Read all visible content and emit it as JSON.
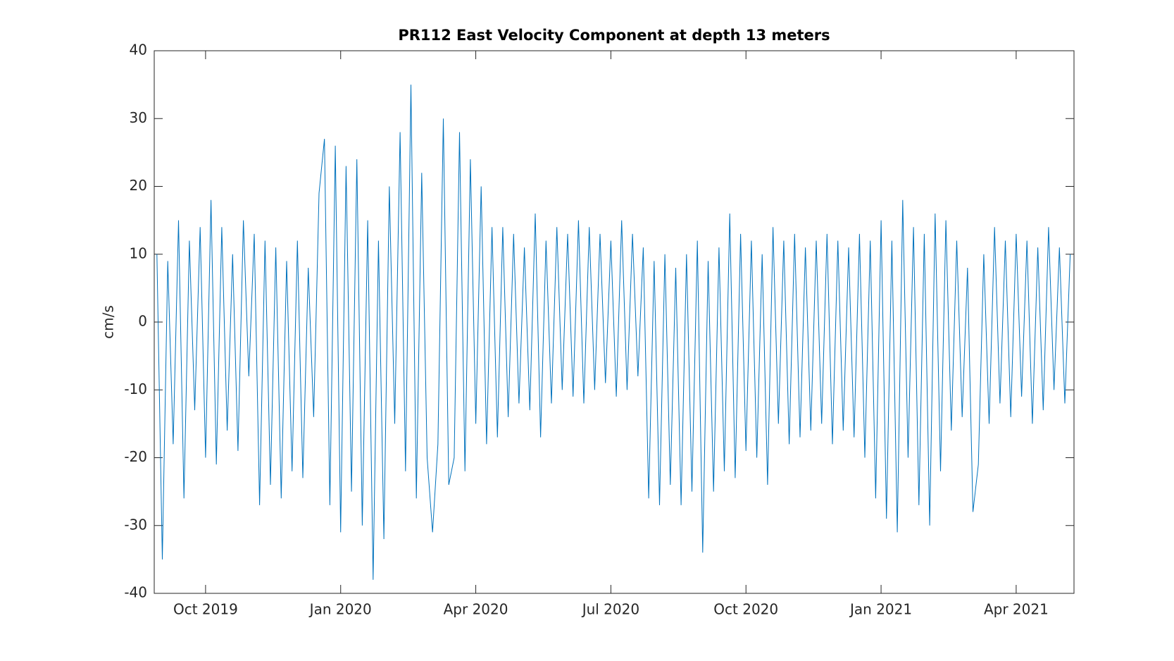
{
  "chart_data": {
    "type": "line",
    "title": "PR112 East Velocity Component at depth 13 meters",
    "ylabel": "cm/s",
    "x": [
      2019.66,
      2019.67,
      2019.68,
      2019.69,
      2019.7,
      2019.71,
      2019.72,
      2019.73,
      2019.74,
      2019.75,
      2019.76,
      2019.77,
      2019.78,
      2019.79,
      2019.8,
      2019.81,
      2019.82,
      2019.83,
      2019.84,
      2019.85,
      2019.86,
      2019.87,
      2019.88,
      2019.89,
      2019.9,
      2019.91,
      2019.92,
      2019.93,
      2019.94,
      2019.95,
      2019.96,
      2019.97,
      2019.98,
      2019.99,
      2020.0,
      2020.01,
      2020.02,
      2020.03,
      2020.04,
      2020.05,
      2020.06,
      2020.07,
      2020.08,
      2020.09,
      2020.1,
      2020.11,
      2020.12,
      2020.13,
      2020.14,
      2020.15,
      2020.16,
      2020.17,
      2020.18,
      2020.19,
      2020.2,
      2020.21,
      2020.22,
      2020.23,
      2020.24,
      2020.25,
      2020.26,
      2020.27,
      2020.28,
      2020.29,
      2020.3,
      2020.31,
      2020.32,
      2020.33,
      2020.34,
      2020.35,
      2020.36,
      2020.37,
      2020.38,
      2020.39,
      2020.4,
      2020.41,
      2020.42,
      2020.43,
      2020.44,
      2020.45,
      2020.46,
      2020.47,
      2020.48,
      2020.49,
      2020.5,
      2020.51,
      2020.52,
      2020.53,
      2020.54,
      2020.55,
      2020.56,
      2020.57,
      2020.58,
      2020.59,
      2020.6,
      2020.61,
      2020.62,
      2020.63,
      2020.64,
      2020.65,
      2020.66,
      2020.67,
      2020.68,
      2020.69,
      2020.7,
      2020.71,
      2020.72,
      2020.73,
      2020.74,
      2020.75,
      2020.76,
      2020.77,
      2020.78,
      2020.79,
      2020.8,
      2020.81,
      2020.82,
      2020.83,
      2020.84,
      2020.85,
      2020.86,
      2020.87,
      2020.88,
      2020.89,
      2020.9,
      2020.91,
      2020.92,
      2020.93,
      2020.94,
      2020.95,
      2020.96,
      2020.97,
      2020.98,
      2020.99,
      2021.0,
      2021.01,
      2021.02,
      2021.03,
      2021.04,
      2021.05,
      2021.06,
      2021.07,
      2021.08,
      2021.09,
      2021.1,
      2021.11,
      2021.12,
      2021.13,
      2021.14,
      2021.15,
      2021.16,
      2021.17,
      2021.18,
      2021.19,
      2021.2,
      2021.21,
      2021.22,
      2021.23,
      2021.24,
      2021.25,
      2021.26,
      2021.27,
      2021.28,
      2021.29,
      2021.3,
      2021.31,
      2021.32,
      2021.33,
      2021.34,
      2021.35
    ],
    "series": [
      {
        "color": "#0072bd",
        "values": [
          10,
          -35,
          9,
          -18,
          15,
          -26,
          12,
          -13,
          14,
          -20,
          18,
          -21,
          14,
          -16,
          10,
          -19,
          15,
          -8,
          13,
          -27,
          12,
          -24,
          11,
          -26,
          9,
          -22,
          12,
          -23,
          8,
          -14,
          19,
          27,
          -27,
          26,
          -31,
          23,
          -25,
          24,
          -30,
          15,
          -38,
          12,
          -32,
          20,
          -15,
          28,
          -22,
          35,
          -26,
          22,
          -20,
          -31,
          -18,
          30,
          -24,
          -20,
          28,
          -22,
          24,
          -15,
          20,
          -18,
          14,
          -17,
          14,
          -14,
          13,
          -12,
          11,
          -13,
          16,
          -17,
          12,
          -12,
          14,
          -10,
          13,
          -11,
          15,
          -12,
          14,
          -10,
          13,
          -9,
          12,
          -11,
          15,
          -10,
          13,
          -8,
          11,
          -26,
          9,
          -27,
          10,
          -24,
          8,
          -27,
          10,
          -25,
          12,
          -34,
          9,
          -25,
          11,
          -22,
          16,
          -23,
          13,
          -19,
          12,
          -20,
          10,
          -24,
          14,
          -15,
          12,
          -18,
          13,
          -17,
          11,
          -16,
          12,
          -15,
          13,
          -18,
          12,
          -16,
          11,
          -17,
          13,
          -20,
          12,
          -26,
          15,
          -29,
          12,
          -31,
          18,
          -20,
          14,
          -27,
          13,
          -30,
          16,
          -22,
          15,
          -16,
          12,
          -14,
          8,
          -28,
          -21,
          10,
          -15,
          14,
          -12,
          12,
          -14,
          13,
          -11,
          12,
          -15,
          11,
          -13,
          14,
          -10,
          11,
          -12,
          10
        ]
      }
    ],
    "xlim": [
      2019.655,
      2021.357
    ],
    "xticks": [
      {
        "value": 2019.75,
        "label": "Oct 2019"
      },
      {
        "value": 2020.0,
        "label": "Jan 2020"
      },
      {
        "value": 2020.25,
        "label": "Apr 2020"
      },
      {
        "value": 2020.5,
        "label": "Jul 2020"
      },
      {
        "value": 2020.75,
        "label": "Oct 2020"
      },
      {
        "value": 2021.0,
        "label": "Jan 2021"
      },
      {
        "value": 2021.25,
        "label": "Apr 2021"
      }
    ],
    "ylim": [
      -40,
      40
    ],
    "yticks": [
      -40,
      -30,
      -20,
      -10,
      0,
      10,
      20,
      30,
      40
    ]
  }
}
